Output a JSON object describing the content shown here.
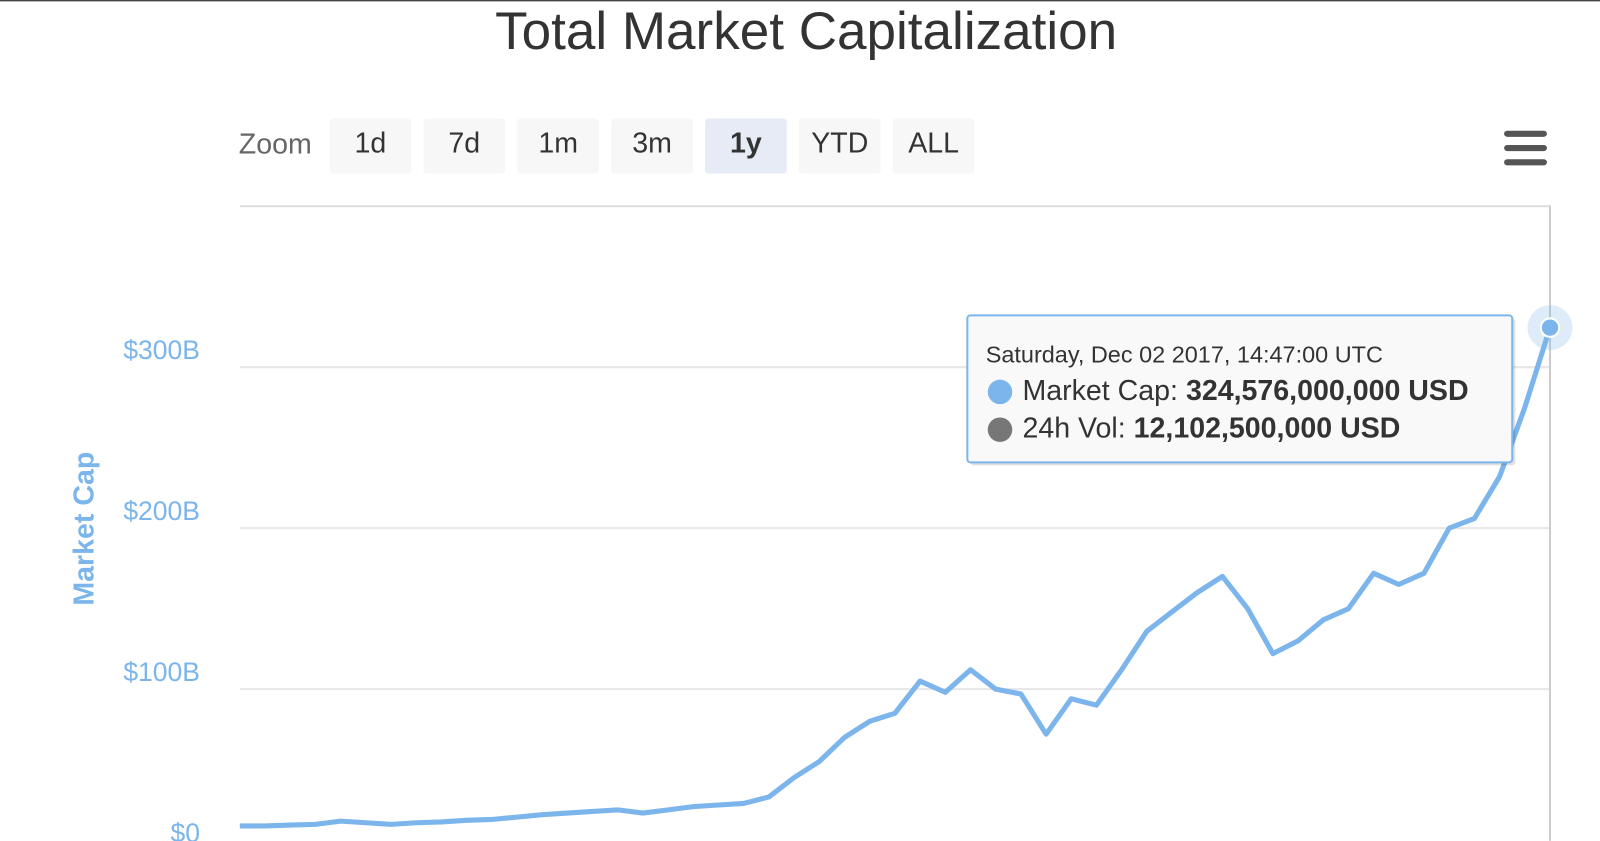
{
  "chart_data": {
    "type": "line",
    "title": "Total Market Capitalization",
    "zoom_label": "Zoom",
    "zoom_buttons": [
      "1d",
      "7d",
      "1m",
      "3m",
      "1y",
      "YTD",
      "ALL"
    ],
    "zoom_selected": "1y",
    "ylabel": "Market Cap",
    "ylim": [
      0,
      400
    ],
    "yticks": [
      {
        "value": 0,
        "label": "$0"
      },
      {
        "value": 100,
        "label": "$100B"
      },
      {
        "value": 200,
        "label": "$200B"
      },
      {
        "value": 300,
        "label": "$300B"
      }
    ],
    "grid": true,
    "series": [
      {
        "name": "Market Cap",
        "color": "#7cb5ec",
        "values": [
          15,
          15,
          15.5,
          16,
          18,
          17,
          16,
          17,
          17.5,
          18.5,
          19,
          20.5,
          22,
          23,
          24,
          25,
          23,
          25,
          27,
          28,
          29,
          33,
          45,
          55,
          70,
          80,
          85,
          105,
          98,
          112,
          100,
          97,
          72,
          94,
          90,
          112,
          136,
          148,
          160,
          170,
          150,
          122,
          130,
          143,
          150,
          172,
          165,
          172,
          200,
          206,
          232,
          275,
          324.576
        ]
      }
    ],
    "tooltip": {
      "date": "Saturday, Dec 02 2017, 14:47:00 UTC",
      "rows": [
        {
          "label": "Market Cap:",
          "value": "324,576,000,000 USD",
          "color": "#7cb5ec"
        },
        {
          "label": "24h Vol:",
          "value": "12,102,500,000 USD",
          "color": "#777777"
        }
      ]
    }
  }
}
